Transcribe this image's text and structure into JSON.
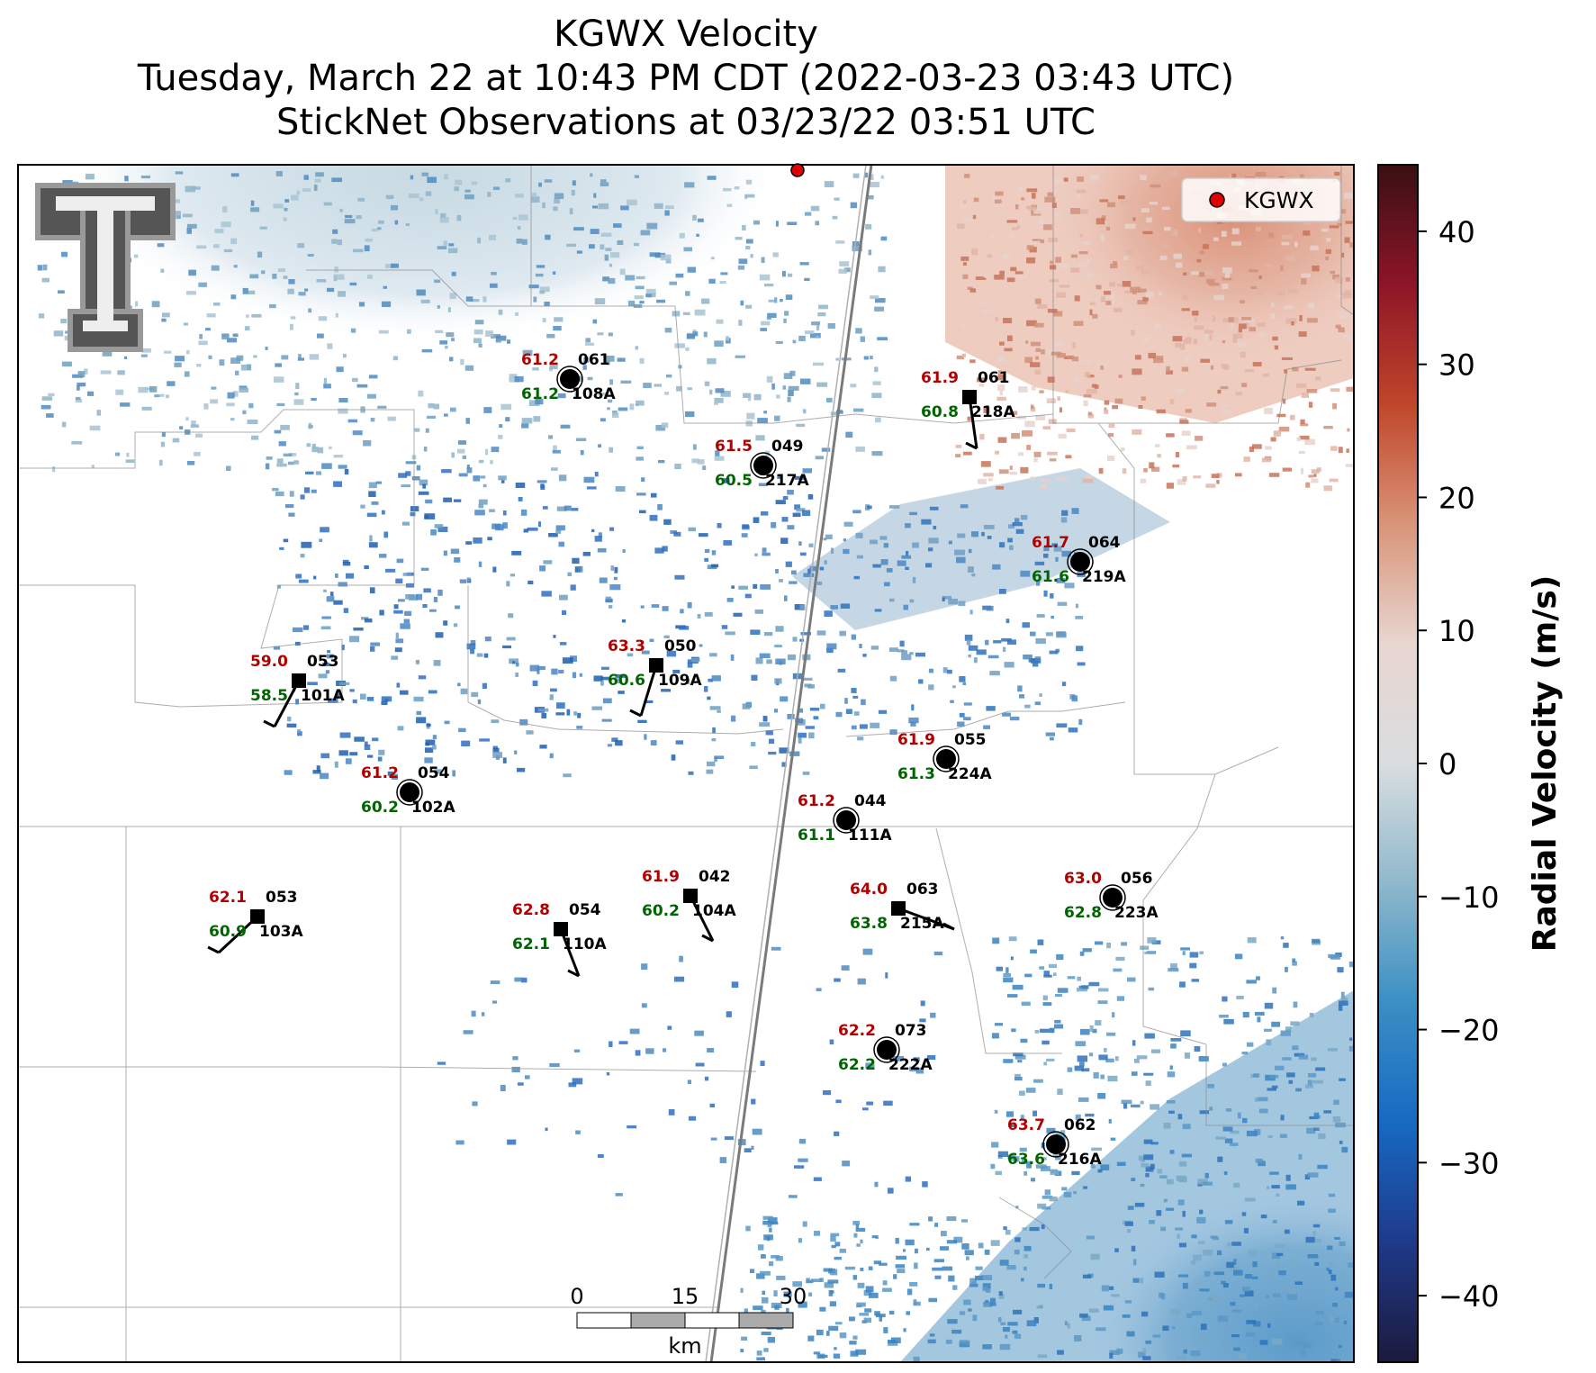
{
  "title": {
    "line1": "KGWX Velocity",
    "line2": "Tuesday, March 22 at 10:43 PM CDT (2022-03-23 03:43 UTC)",
    "line3": "StickNet Observations at 03/23/22 03:51 UTC"
  },
  "legend": {
    "label": "KGWX",
    "marker_color": "#e00000"
  },
  "logo": {
    "text": "TT"
  },
  "colorbar": {
    "label": "Radial Velocity (m/s)",
    "min": -45,
    "max": 45,
    "ticks": [
      40,
      30,
      20,
      10,
      0,
      -10,
      -20,
      -30,
      -40
    ],
    "tick_labels": [
      "40",
      "30",
      "20",
      "10",
      "0",
      "−10",
      "−20",
      "−30",
      "−40"
    ],
    "colors": [
      "#1c1a3d",
      "#1f3a8a",
      "#1769c2",
      "#3a8fc4",
      "#8fb8cc",
      "#d9dddf",
      "#e8d6d0",
      "#d99478",
      "#c0462a",
      "#8e1528",
      "#3a0f14"
    ]
  },
  "scale_bar": {
    "labels": [
      "0",
      "15",
      "30"
    ],
    "unit": "km"
  },
  "stations": [
    {
      "id": "108A",
      "temp": "61.2",
      "dew": "61.2",
      "dir": "061",
      "marker": "circle"
    },
    {
      "id": "218A",
      "temp": "61.9",
      "dew": "60.8",
      "dir": "061",
      "marker": "square"
    },
    {
      "id": "217A",
      "temp": "61.5",
      "dew": "60.5",
      "dir": "049",
      "marker": "circle"
    },
    {
      "id": "219A",
      "temp": "61.7",
      "dew": "61.6",
      "dir": "064",
      "marker": "circle"
    },
    {
      "id": "101A",
      "temp": "59.0",
      "dew": "58.5",
      "dir": "053",
      "marker": "square"
    },
    {
      "id": "109A",
      "temp": "63.3",
      "dew": "60.6",
      "dir": "050",
      "marker": "square"
    },
    {
      "id": "224A",
      "temp": "61.9",
      "dew": "61.3",
      "dir": "055",
      "marker": "circle"
    },
    {
      "id": "102A",
      "temp": "61.2",
      "dew": "60.2",
      "dir": "054",
      "marker": "circle"
    },
    {
      "id": "111A",
      "temp": "61.2",
      "dew": "61.1",
      "dir": "044",
      "marker": "circle"
    },
    {
      "id": "104A",
      "temp": "61.9",
      "dew": "60.2",
      "dir": "042",
      "marker": "square"
    },
    {
      "id": "103A",
      "temp": "62.1",
      "dew": "60.9",
      "dir": "053",
      "marker": "square"
    },
    {
      "id": "215A",
      "temp": "64.0",
      "dew": "63.8",
      "dir": "063",
      "marker": "square"
    },
    {
      "id": "223A",
      "temp": "63.0",
      "dew": "62.8",
      "dir": "056",
      "marker": "circle"
    },
    {
      "id": "110A",
      "temp": "62.8",
      "dew": "62.1",
      "dir": "054",
      "marker": "square"
    },
    {
      "id": "222A",
      "temp": "62.2",
      "dew": "62.2",
      "dir": "073",
      "marker": "circle"
    },
    {
      "id": "216A",
      "temp": "63.7",
      "dew": "63.6",
      "dir": "062",
      "marker": "circle"
    }
  ]
}
